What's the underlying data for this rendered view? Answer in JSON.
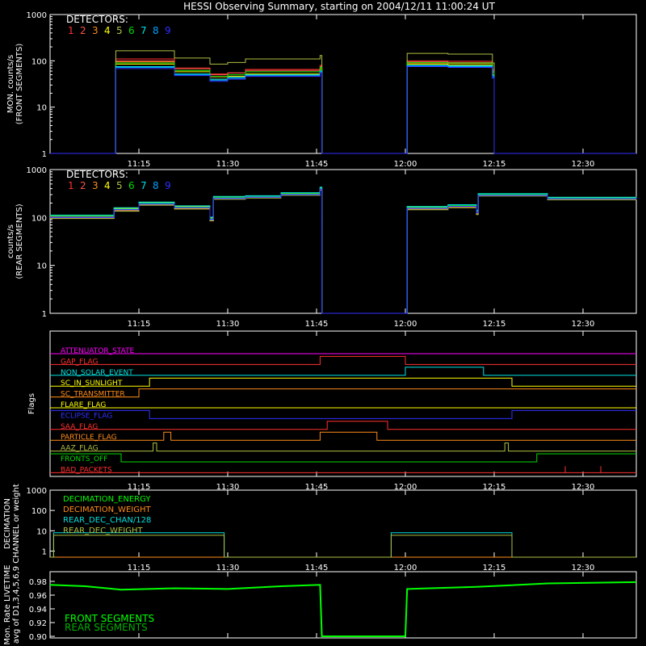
{
  "title": "HESSI Observing Summary, starting on 2004/12/11 11:00:24 UT",
  "time_ticks": [
    "11:15",
    "11:30",
    "11:45",
    "12:00",
    "12:15",
    "12:30"
  ],
  "colors": {
    "axis": "#ffffff",
    "text": "#ffffff",
    "det": [
      "#ff3030",
      "#ff5050",
      "#ff8c1a",
      "#ffff00",
      "#b0c040",
      "#00dd00",
      "#00e0e0",
      "#00a0ff",
      "#3030ff"
    ]
  },
  "chart_data": [
    {
      "type": "line",
      "name": "front_segments_rates",
      "ylabel_lines": [
        "MON. counts/s",
        "(FRONT SEGMENTS)"
      ],
      "yscale": "log",
      "ylim": [
        1,
        1000
      ],
      "ytick_labels": [
        "1",
        "10",
        "100",
        "1000"
      ],
      "xlim": [
        11.0,
        12.65
      ],
      "legend_title": "DETECTORS:",
      "legend_items": [
        "1",
        "2",
        "3",
        "4",
        "5",
        "6",
        "7",
        "8",
        "9"
      ],
      "x": [
        11.0,
        11.18,
        11.185,
        11.26,
        11.35,
        11.45,
        11.5,
        11.55,
        11.76,
        11.765,
        12.0,
        12.005,
        12.12,
        12.245,
        12.25,
        12.65
      ],
      "series": [
        {
          "name": "1",
          "values": [
            1,
            1,
            110,
            110,
            70,
            52,
            55,
            65,
            80,
            1,
            1,
            100,
            98,
            65,
            1,
            1
          ]
        },
        {
          "name": "2",
          "values": [
            1,
            1,
            100,
            100,
            68,
            50,
            55,
            62,
            75,
            1,
            1,
            95,
            92,
            60,
            1,
            1
          ]
        },
        {
          "name": "3",
          "values": [
            1,
            1,
            95,
            95,
            62,
            45,
            50,
            58,
            70,
            1,
            1,
            90,
            88,
            55,
            1,
            1
          ]
        },
        {
          "name": "4",
          "values": [
            1,
            1,
            85,
            85,
            58,
            40,
            46,
            52,
            65,
            1,
            1,
            85,
            82,
            50,
            1,
            1
          ]
        },
        {
          "name": "5",
          "values": [
            1,
            1,
            165,
            165,
            115,
            85,
            92,
            110,
            130,
            1,
            1,
            145,
            140,
            90,
            1,
            1
          ]
        },
        {
          "name": "6",
          "values": [
            1,
            1,
            90,
            90,
            62,
            46,
            50,
            58,
            72,
            1,
            1,
            92,
            90,
            58,
            1,
            1
          ]
        },
        {
          "name": "7",
          "values": [
            1,
            1,
            75,
            75,
            52,
            40,
            44,
            50,
            60,
            1,
            1,
            80,
            78,
            48,
            1,
            1
          ]
        },
        {
          "name": "8",
          "values": [
            1,
            1,
            72,
            72,
            50,
            38,
            42,
            48,
            58,
            1,
            1,
            78,
            75,
            45,
            1,
            1
          ]
        },
        {
          "name": "9",
          "values": [
            1,
            1,
            68,
            68,
            48,
            36,
            40,
            46,
            55,
            1,
            1,
            75,
            72,
            42,
            1,
            1
          ]
        }
      ]
    },
    {
      "type": "line",
      "name": "rear_segments_rates",
      "ylabel_lines": [
        "counts/s",
        "(REAR SEGMENTS)"
      ],
      "yscale": "log",
      "ylim": [
        1,
        1000
      ],
      "ytick_labels": [
        "1",
        "10",
        "100",
        "1000"
      ],
      "xlim": [
        11.0,
        12.65
      ],
      "legend_title": "DETECTORS:",
      "legend_items": [
        "1",
        "2",
        "3",
        "4",
        "5",
        "6",
        "7",
        "8",
        "9"
      ],
      "x": [
        11.0,
        11.18,
        11.25,
        11.35,
        11.45,
        11.46,
        11.55,
        11.65,
        11.76,
        11.765,
        12.0,
        12.005,
        12.12,
        12.2,
        12.205,
        12.4,
        12.65
      ],
      "series": [
        {
          "name": "1",
          "values": [
            105,
            150,
            200,
            165,
            95,
            260,
            270,
            310,
            400,
            1,
            1,
            160,
            175,
            130,
            300,
            250,
            260
          ]
        },
        {
          "name": "2",
          "values": [
            100,
            145,
            190,
            160,
            90,
            250,
            265,
            300,
            390,
            1,
            1,
            155,
            170,
            125,
            290,
            245,
            255
          ]
        },
        {
          "name": "3",
          "values": [
            98,
            140,
            185,
            155,
            88,
            245,
            260,
            295,
            380,
            1,
            1,
            150,
            165,
            120,
            285,
            240,
            250
          ]
        },
        {
          "name": "4",
          "values": [
            110,
            155,
            205,
            170,
            100,
            270,
            280,
            320,
            420,
            1,
            1,
            165,
            180,
            140,
            310,
            260,
            270
          ]
        },
        {
          "name": "5",
          "values": [
            95,
            135,
            180,
            150,
            85,
            240,
            255,
            290,
            370,
            1,
            1,
            145,
            160,
            115,
            280,
            235,
            245
          ]
        },
        {
          "name": "6",
          "values": [
            108,
            150,
            200,
            165,
            95,
            265,
            275,
            315,
            410,
            1,
            1,
            162,
            178,
            135,
            305,
            255,
            265
          ]
        },
        {
          "name": "7",
          "values": [
            112,
            160,
            210,
            175,
            102,
            275,
            285,
            330,
            430,
            1,
            1,
            170,
            185,
            142,
            315,
            265,
            275
          ]
        },
        {
          "name": "8",
          "values": [
            102,
            148,
            195,
            162,
            92,
            255,
            268,
            305,
            395,
            1,
            1,
            158,
            172,
            128,
            295,
            248,
            258
          ]
        },
        {
          "name": "9",
          "values": [
            100,
            145,
            190,
            160,
            90,
            250,
            265,
            300,
            390,
            1,
            1,
            155,
            170,
            125,
            290,
            245,
            255
          ]
        }
      ]
    },
    {
      "type": "line",
      "name": "flags",
      "ylabel": "Flags",
      "xlim": [
        11.0,
        12.65
      ],
      "series": [
        {
          "name": "ATTENUATOR_STATE",
          "color": "#ff00ff",
          "steps": [
            [
              11.0,
              0
            ],
            [
              12.65,
              0
            ]
          ]
        },
        {
          "name": "GAP_FLAG",
          "color": "#ff3030",
          "steps": [
            [
              11.0,
              0
            ],
            [
              11.76,
              1
            ],
            [
              12.0,
              0
            ],
            [
              12.65,
              0
            ]
          ]
        },
        {
          "name": "NON_SOLAR_EVENT",
          "color": "#00e0e0",
          "steps": [
            [
              11.0,
              0
            ],
            [
              12.0,
              1
            ],
            [
              12.22,
              0
            ],
            [
              12.65,
              0
            ]
          ]
        },
        {
          "name": "SC_IN_SUNLIGHT",
          "color": "#ffff00",
          "steps": [
            [
              11.0,
              0
            ],
            [
              11.28,
              1
            ],
            [
              12.3,
              0
            ],
            [
              12.65,
              0
            ]
          ]
        },
        {
          "name": "SC_TRANSMITTER",
          "color": "#ff8c1a",
          "steps": [
            [
              11.0,
              0
            ],
            [
              11.25,
              1
            ],
            [
              12.65,
              1
            ]
          ]
        },
        {
          "name": "FLARE_FLAG",
          "color": "#ffff00",
          "steps": [
            [
              11.0,
              0
            ],
            [
              12.65,
              0
            ]
          ]
        },
        {
          "name": "ECLIPSE_FLAG",
          "color": "#3030ff",
          "steps": [
            [
              11.0,
              1
            ],
            [
              11.28,
              0
            ],
            [
              12.3,
              1
            ],
            [
              12.65,
              1
            ]
          ]
        },
        {
          "name": "SAA_FLAG",
          "color": "#ff3030",
          "steps": [
            [
              11.0,
              0
            ],
            [
              11.78,
              1
            ],
            [
              11.95,
              0
            ],
            [
              12.65,
              0
            ]
          ]
        },
        {
          "name": "PARTICLE_FLAG",
          "color": "#ff8c1a",
          "steps": [
            [
              11.0,
              0
            ],
            [
              11.32,
              1
            ],
            [
              11.34,
              0
            ],
            [
              11.76,
              1
            ],
            [
              11.92,
              0
            ],
            [
              12.65,
              0
            ]
          ]
        },
        {
          "name": "AAZ_FLAG",
          "color": "#b0c040",
          "steps": [
            [
              11.0,
              0
            ],
            [
              11.29,
              1
            ],
            [
              11.3,
              0
            ],
            [
              12.28,
              1
            ],
            [
              12.29,
              0
            ],
            [
              12.65,
              0
            ]
          ]
        },
        {
          "name": "FRONTS_OFF",
          "color": "#00dd00",
          "steps": [
            [
              11.0,
              1
            ],
            [
              11.2,
              0
            ],
            [
              12.37,
              1
            ],
            [
              12.65,
              1
            ]
          ]
        },
        {
          "name": "BAD_PACKETS",
          "color": "#ff3030",
          "steps": [
            [
              11.0,
              0
            ],
            [
              12.65,
              0
            ]
          ]
        }
      ]
    },
    {
      "type": "line",
      "name": "decimation",
      "ylabel_lines": [
        "DECIMATION",
        "CHANNEL or weight"
      ],
      "yscale": "log",
      "ylim": [
        0.5,
        1000
      ],
      "ytick_labels": [
        "1",
        "10",
        "100",
        "1000"
      ],
      "xlim": [
        11.0,
        12.65
      ],
      "series": [
        {
          "name": "DECIMATION_ENERGY",
          "color": "#00ff00",
          "x": [
            11.0,
            12.65
          ],
          "values": [
            0.5,
            0.5
          ]
        },
        {
          "name": "DECIMATION_WEIGHT",
          "color": "#ff8c1a",
          "x": [
            11.0,
            12.65
          ],
          "values": [
            0.5,
            0.5
          ]
        },
        {
          "name": "REAR_DEC_CHAN/128",
          "color": "#00e0e0",
          "x": [
            11.0,
            11.01,
            11.48,
            11.49,
            11.95,
            11.96,
            12.29,
            12.3,
            12.65
          ],
          "values": [
            0.5,
            8,
            8,
            0.5,
            0.5,
            8,
            8,
            0.5,
            0.5
          ]
        },
        {
          "name": "REAR_DEC_WEIGHT",
          "color": "#b0c040",
          "x": [
            11.0,
            11.01,
            11.48,
            11.49,
            11.95,
            11.96,
            12.29,
            12.3,
            12.65
          ],
          "values": [
            0.5,
            6,
            6,
            0.5,
            0.5,
            6,
            6,
            0.5,
            0.5
          ]
        }
      ]
    },
    {
      "type": "line",
      "name": "livetime",
      "ylabel_lines": [
        "Mon. Rate LIVETIME",
        "avg of D1,3,4,5,6,9"
      ],
      "ylim": [
        0.9,
        0.98
      ],
      "ytick_labels": [
        "0.90",
        "0.92",
        "0.94",
        "0.96",
        "0.98"
      ],
      "xlim": [
        11.0,
        12.65
      ],
      "series": [
        {
          "name": "FRONT SEGMENTS",
          "color": "#00ff00",
          "x": [
            11.0,
            11.1,
            11.2,
            11.35,
            11.5,
            11.65,
            11.76,
            11.765,
            12.0,
            12.005,
            12.2,
            12.4,
            12.65
          ],
          "values": [
            0.975,
            0.973,
            0.968,
            0.97,
            0.969,
            0.973,
            0.975,
            0.9,
            0.9,
            0.969,
            0.972,
            0.977,
            0.979
          ]
        },
        {
          "name": "REAR SEGMENTS",
          "color": "#00b000",
          "x": [
            11.0,
            12.65
          ],
          "values": [
            0.9,
            0.9
          ]
        }
      ]
    }
  ]
}
